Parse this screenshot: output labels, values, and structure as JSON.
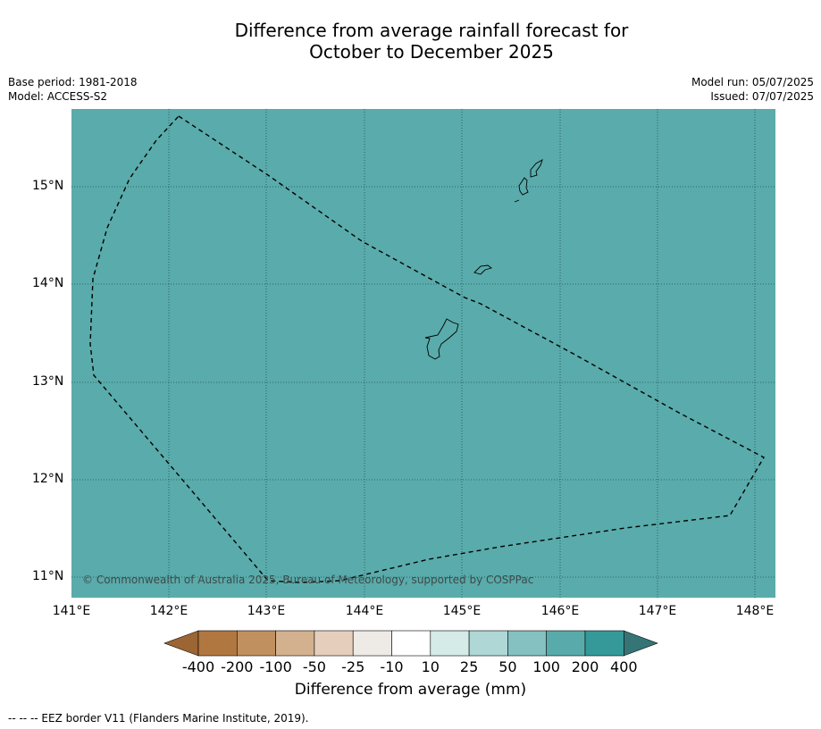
{
  "title_line1": "Difference from average rainfall forecast for",
  "title_line2": "October to December 2025",
  "meta_left": {
    "base_period": "Base period: 1981-2018",
    "model": "Model: ACCESS-S2"
  },
  "meta_right": {
    "model_run": "Model run: 05/07/2025",
    "issued": "Issued: 07/07/2025"
  },
  "map": {
    "fill_color": "#5aabab",
    "lat_labels": [
      "15°N",
      "14°N",
      "13°N",
      "12°N",
      "11°N"
    ],
    "lon_labels": [
      "141°E",
      "142°E",
      "143°E",
      "144°E",
      "145°E",
      "146°E",
      "147°E",
      "148°E"
    ],
    "copyright": "© Commonwealth of Australia 2025, Bureau of Meteorology, supported by COSPPac"
  },
  "colorbar": {
    "title": "Difference from average (mm)",
    "labels": [
      "-400",
      "-200",
      "-100",
      "-50",
      "-25",
      "-10",
      "10",
      "25",
      "50",
      "100",
      "200",
      "400"
    ],
    "colors": [
      "#9c6534",
      "#b07740",
      "#c0905f",
      "#d3b18f",
      "#e5cfbc",
      "#eeeae5",
      "#ffffff",
      "#d4ebe8",
      "#aed7d5",
      "#84c1c0",
      "#59abab",
      "#35999a",
      "#357576"
    ]
  },
  "footer": "--  --  -- EEZ border V11 (Flanders Marine Institute, 2019)."
}
